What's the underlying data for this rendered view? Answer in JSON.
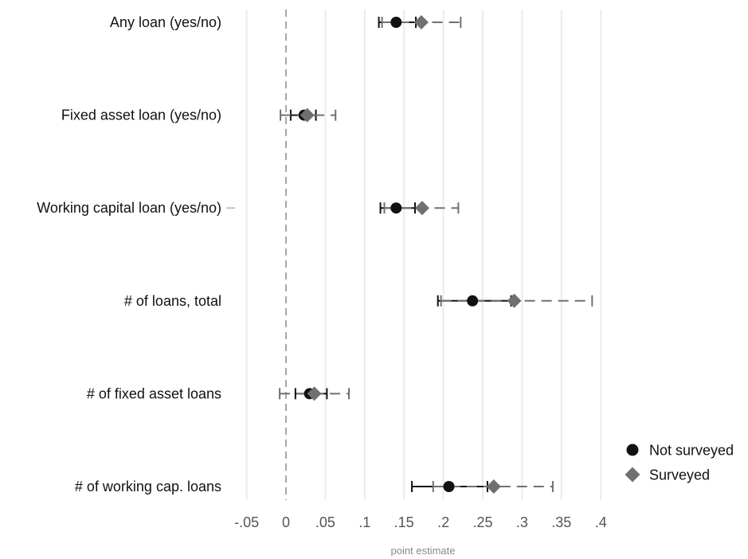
{
  "chart_data": {
    "type": "scatter",
    "subtype": "coefficient plot with confidence intervals",
    "orientation": "horizontal",
    "title": "",
    "xlabel": "point estimate",
    "ylabel": "",
    "categories": [
      "Any loan (yes/no)",
      "Fixed asset loan (yes/no)",
      "Working capital loan (yes/no)",
      "# of loans, total",
      "# of fixed asset loans",
      "# of working cap. loans"
    ],
    "xlim": [
      -0.07,
      0.42
    ],
    "x_ticks": [
      -0.05,
      0,
      0.05,
      0.1,
      0.15,
      0.2,
      0.25,
      0.3,
      0.35,
      0.4
    ],
    "x_tick_labels": [
      "-.05",
      "0",
      ".05",
      ".1",
      ".15",
      ".2",
      ".25",
      ".3",
      ".35",
      ".4"
    ],
    "reference_line": 0,
    "grid": true,
    "legend_position": "right",
    "series": [
      {
        "name": "Not surveyed",
        "marker": "circle",
        "color": "#111111",
        "line_style": "solid",
        "values": [
          0.14,
          0.023,
          0.14,
          0.237,
          0.03,
          0.207
        ],
        "ci_low": [
          0.118,
          0.006,
          0.12,
          0.193,
          0.012,
          0.16
        ],
        "ci_high": [
          0.165,
          0.038,
          0.164,
          0.286,
          0.052,
          0.256
        ]
      },
      {
        "name": "Surveyed",
        "marker": "diamond",
        "color": "#707070",
        "line_style": "dashed",
        "values": [
          0.172,
          0.027,
          0.173,
          0.29,
          0.036,
          0.264
        ],
        "ci_low": [
          0.122,
          -0.007,
          0.125,
          0.197,
          -0.008,
          0.187
        ],
        "ci_high": [
          0.222,
          0.063,
          0.219,
          0.389,
          0.08,
          0.339
        ]
      }
    ]
  }
}
